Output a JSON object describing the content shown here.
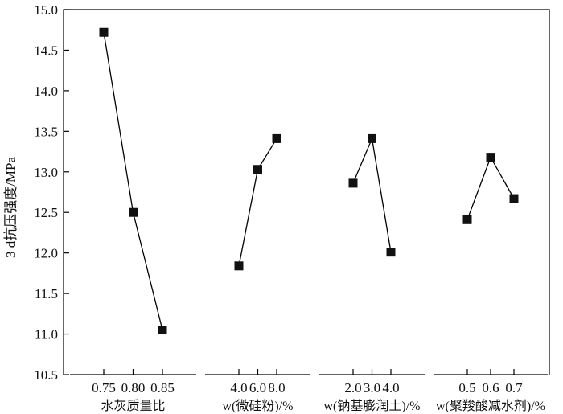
{
  "chart_data": {
    "type": "line",
    "ylabel": "3 d抗压强度/MPa",
    "ylim": [
      10.5,
      15.0
    ],
    "yticks": [
      "10.5",
      "11.0",
      "11.5",
      "12.0",
      "12.5",
      "13.0",
      "13.5",
      "14.0",
      "14.5",
      "15.0"
    ],
    "grid": false,
    "panels": [
      {
        "xlabel": "水灰质量比",
        "categories": [
          "0.75",
          "0.80",
          "0.85"
        ],
        "values": [
          14.72,
          12.5,
          11.05
        ]
      },
      {
        "xlabel": "w(微硅粉)/%",
        "categories": [
          "4.0",
          "6.0",
          "8.0"
        ],
        "values": [
          11.84,
          13.03,
          13.41
        ]
      },
      {
        "xlabel": "w(钠基膨润土)/%",
        "categories": [
          "2.0",
          "3.0",
          "4.0"
        ],
        "values": [
          12.86,
          13.41,
          12.01
        ]
      },
      {
        "xlabel": "w(聚羧酸减水剂)/%",
        "categories": [
          "0.5",
          "0.6",
          "0.7"
        ],
        "values": [
          12.41,
          13.18,
          12.67
        ]
      }
    ],
    "marker": "square",
    "line_color": "#000000",
    "marker_color": "#111111"
  }
}
